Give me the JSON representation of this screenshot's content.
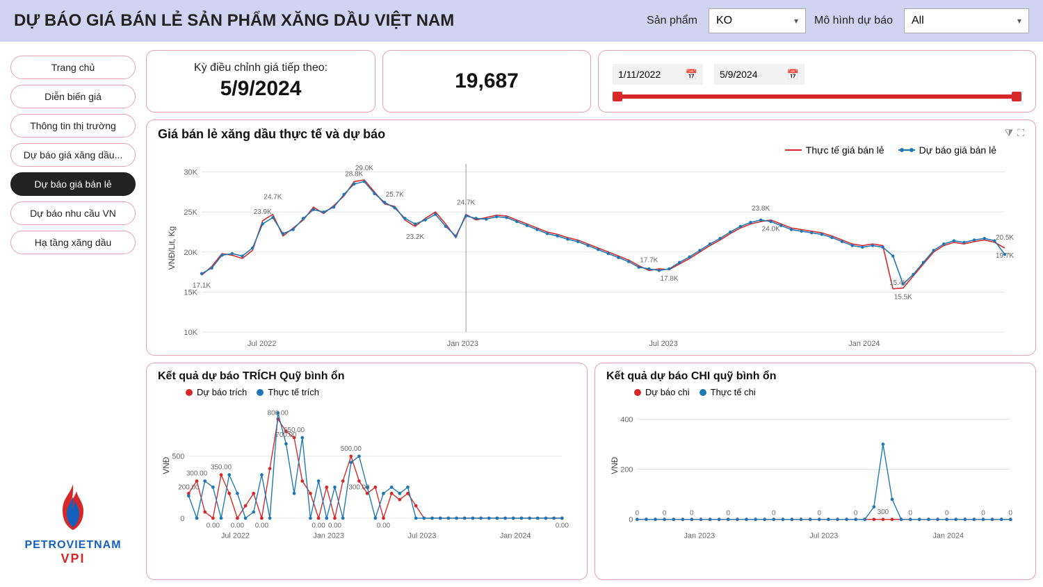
{
  "header": {
    "title": "DỰ BÁO GIÁ BÁN LẺ SẢN PHẨM XĂNG DẦU VIỆT NAM",
    "product_label": "Sản phẩm",
    "product_value": "KO",
    "model_label": "Mô hình dự báo",
    "model_value": "All"
  },
  "sidebar": {
    "items": [
      {
        "label": "Trang chủ",
        "active": false
      },
      {
        "label": "Diễn biến giá",
        "active": false
      },
      {
        "label": "Thông tin thị trường",
        "active": false
      },
      {
        "label": "Dự báo giá xăng dầu...",
        "active": false
      },
      {
        "label": "Dự báo giá bán lẻ",
        "active": true
      },
      {
        "label": "Dự báo nhu cầu VN",
        "active": false
      },
      {
        "label": "Hạ tầng xăng dầu",
        "active": false
      }
    ],
    "logo": {
      "line1": "PETROVIETNAM",
      "line2": "VPI"
    }
  },
  "cards": {
    "next_adjustment_label": "Kỳ điều chỉnh giá tiếp theo:",
    "next_adjustment_value": "5/9/2024",
    "metric_value": "19,687",
    "date_from": "1/11/2022",
    "date_to": "5/9/2024"
  },
  "main_chart": {
    "title": "Giá bán lẻ xăng dầu thực tế và dự báo",
    "y_axis_label": "VNĐ/Lit, Kg",
    "legend": [
      {
        "label": "Thực tế giá bán lẻ",
        "color": "#d62828",
        "style": "line"
      },
      {
        "label": "Dự báo giá bán lẻ",
        "color": "#1f77b4",
        "style": "dots"
      }
    ],
    "y_ticks": [
      10,
      15,
      20,
      25,
      30
    ],
    "y_tick_suffix": "K",
    "x_ticks": [
      "Jul 2022",
      "Jan 2023",
      "Jul 2023",
      "Jan 2024"
    ],
    "ylim": [
      10,
      31
    ],
    "grid_color": "#e5e5e5",
    "background_color": "#ffffff",
    "vline_at_index": 26,
    "annotations": [
      {
        "i": 0,
        "text": "17.1K",
        "dy": 18
      },
      {
        "i": 6,
        "text": "23.9K",
        "dy": -10
      },
      {
        "i": 7,
        "text": "24.7K",
        "dy": -22
      },
      {
        "i": 15,
        "text": "28.8K",
        "dy": -8
      },
      {
        "i": 16,
        "text": "29.0K",
        "dy": -14
      },
      {
        "i": 19,
        "text": "25.7K",
        "dy": -14
      },
      {
        "i": 21,
        "text": "23.2K",
        "dy": 18
      },
      {
        "i": 26,
        "text": "24.7K",
        "dy": -14
      },
      {
        "i": 44,
        "text": "17.7K",
        "dy": -12
      },
      {
        "i": 46,
        "text": "17.8K",
        "dy": 16
      },
      {
        "i": 55,
        "text": "23.8K",
        "dy": -16
      },
      {
        "i": 56,
        "text": "24.0K",
        "dy": 16
      },
      {
        "i": 68,
        "text": "15.4K",
        "dy": -6,
        "dx": 8
      },
      {
        "i": 69,
        "text": "15.5K",
        "dy": 16
      },
      {
        "i": 79,
        "text": "20.5K",
        "dy": -12
      },
      {
        "i": 79,
        "text": "19.7K",
        "dy": 14
      }
    ],
    "series_actual_color": "#d62828",
    "series_forecast_color": "#1f77b4",
    "series_actual": [
      17.1,
      18.2,
      19.8,
      19.6,
      19.2,
      20.2,
      23.9,
      24.7,
      22.0,
      23.0,
      24.0,
      25.6,
      24.8,
      25.8,
      27.0,
      28.8,
      29.0,
      27.5,
      26.0,
      25.7,
      24.0,
      23.2,
      24.2,
      25.0,
      23.5,
      21.8,
      24.7,
      24.0,
      24.3,
      24.6,
      24.5,
      24.0,
      23.5,
      23.0,
      22.5,
      22.2,
      21.8,
      21.5,
      21.0,
      20.5,
      20.0,
      19.5,
      19.0,
      18.3,
      17.7,
      17.9,
      17.8,
      18.5,
      19.2,
      20.0,
      20.8,
      21.5,
      22.3,
      23.0,
      23.5,
      23.8,
      24.0,
      23.5,
      23.0,
      22.8,
      22.6,
      22.4,
      22.0,
      21.5,
      21.0,
      20.8,
      21.0,
      20.8,
      15.4,
      15.5,
      17.0,
      18.5,
      20.0,
      20.8,
      21.2,
      21.0,
      21.3,
      21.5,
      21.2,
      20.5
    ],
    "series_forecast": [
      17.3,
      18.0,
      19.6,
      19.8,
      19.5,
      20.5,
      23.5,
      24.3,
      22.3,
      22.8,
      24.2,
      25.3,
      25.0,
      25.6,
      27.2,
      28.5,
      28.8,
      27.3,
      26.2,
      25.5,
      24.2,
      23.5,
      24.0,
      24.7,
      23.2,
      22.0,
      24.5,
      24.2,
      24.1,
      24.4,
      24.3,
      23.8,
      23.3,
      22.8,
      22.3,
      22.0,
      21.6,
      21.3,
      20.8,
      20.3,
      19.8,
      19.3,
      18.8,
      18.1,
      17.9,
      17.7,
      17.9,
      18.7,
      19.4,
      20.2,
      21.0,
      21.7,
      22.5,
      23.2,
      23.7,
      24.0,
      23.8,
      23.3,
      22.8,
      22.6,
      22.4,
      22.2,
      21.8,
      21.3,
      20.8,
      20.6,
      20.8,
      20.6,
      19.5,
      16.0,
      17.2,
      18.7,
      20.2,
      21.0,
      21.4,
      21.2,
      21.5,
      21.7,
      21.4,
      19.7
    ]
  },
  "trich_chart": {
    "title": "Kết quả dự báo TRÍCH Quỹ bình ổn",
    "y_axis_label": "VNĐ",
    "legend": [
      {
        "label": "Dự báo trích",
        "color": "#d62828"
      },
      {
        "label": "Thực tế trích",
        "color": "#1f77b4"
      }
    ],
    "y_ticks": [
      0,
      500
    ],
    "ylim": [
      -50,
      900
    ],
    "x_ticks": [
      "Jul 2022",
      "Jan 2023",
      "Jul 2023",
      "Jan 2024"
    ],
    "annotations": [
      {
        "i": 0,
        "text": "200.00",
        "dy": -6
      },
      {
        "i": 1,
        "text": "300.00",
        "dy": -8
      },
      {
        "i": 3,
        "text": "0.00",
        "dy": 14
      },
      {
        "i": 4,
        "text": "350.00",
        "dy": -8
      },
      {
        "i": 6,
        "text": "0.00",
        "dy": 14
      },
      {
        "i": 9,
        "text": "0.00",
        "dy": 14
      },
      {
        "i": 11,
        "text": "800.00",
        "dy": -6
      },
      {
        "i": 12,
        "text": "700.00",
        "dy": 8
      },
      {
        "i": 13,
        "text": "650.00",
        "dy": -8
      },
      {
        "i": 16,
        "text": "0.00",
        "dy": 14
      },
      {
        "i": 18,
        "text": "0.00",
        "dy": 14
      },
      {
        "i": 20,
        "text": "500.00",
        "dy": -8
      },
      {
        "i": 21,
        "text": "300.00",
        "dy": 12
      },
      {
        "i": 24,
        "text": "0.00",
        "dy": 14
      },
      {
        "i": 46,
        "text": "0.00",
        "dy": 14
      }
    ],
    "series_forecast_color": "#d62828",
    "series_actual_color": "#1f77b4",
    "series_forecast": [
      200,
      300,
      50,
      0,
      350,
      200,
      0,
      100,
      200,
      0,
      400,
      800,
      700,
      650,
      300,
      200,
      0,
      250,
      0,
      300,
      500,
      300,
      200,
      250,
      0,
      200,
      150,
      200,
      100,
      0,
      0,
      0,
      0,
      0,
      0,
      0,
      0,
      0,
      0,
      0,
      0,
      0,
      0,
      0,
      0,
      0,
      0
    ],
    "series_actual": [
      180,
      0,
      300,
      250,
      0,
      350,
      200,
      0,
      50,
      350,
      0,
      850,
      600,
      200,
      650,
      0,
      300,
      0,
      250,
      0,
      450,
      500,
      250,
      0,
      200,
      250,
      200,
      250,
      0,
      0,
      0,
      0,
      0,
      0,
      0,
      0,
      0,
      0,
      0,
      0,
      0,
      0,
      0,
      0,
      0,
      0,
      0
    ]
  },
  "chi_chart": {
    "title": "Kết quả dự báo CHI quỹ bình ổn",
    "y_axis_label": "VNĐ",
    "legend": [
      {
        "label": "Dự báo chi",
        "color": "#d62828"
      },
      {
        "label": "Thực tế chi",
        "color": "#1f77b4"
      }
    ],
    "y_ticks": [
      0,
      200,
      400
    ],
    "ylim": [
      -20,
      450
    ],
    "x_ticks": [
      "Jan 2023",
      "Jul 2023",
      "Jan 2024"
    ],
    "annotations": [
      {
        "i": 0,
        "text": "0",
        "dy": -6
      },
      {
        "i": 3,
        "text": "0",
        "dy": -6
      },
      {
        "i": 6,
        "text": "0",
        "dy": -6
      },
      {
        "i": 10,
        "text": "0",
        "dy": -6
      },
      {
        "i": 15,
        "text": "0",
        "dy": -6
      },
      {
        "i": 20,
        "text": "0",
        "dy": -6
      },
      {
        "i": 24,
        "text": "0",
        "dy": -6
      },
      {
        "i": 27,
        "text": "300",
        "dy": -8
      },
      {
        "i": 30,
        "text": "0",
        "dy": -6
      },
      {
        "i": 34,
        "text": "0",
        "dy": -6
      },
      {
        "i": 38,
        "text": "0",
        "dy": -6
      },
      {
        "i": 41,
        "text": "0",
        "dy": -6
      }
    ],
    "series_forecast_color": "#d62828",
    "series_actual_color": "#1f77b4",
    "series_forecast": [
      0,
      0,
      0,
      0,
      0,
      0,
      0,
      0,
      0,
      0,
      0,
      0,
      0,
      0,
      0,
      0,
      0,
      0,
      0,
      0,
      0,
      0,
      0,
      0,
      0,
      0,
      0,
      0,
      0,
      0,
      0,
      0,
      0,
      0,
      0,
      0,
      0,
      0,
      0,
      0,
      0,
      0
    ],
    "series_actual": [
      0,
      0,
      0,
      0,
      0,
      0,
      0,
      0,
      0,
      0,
      0,
      0,
      0,
      0,
      0,
      0,
      0,
      0,
      0,
      0,
      0,
      0,
      0,
      0,
      0,
      0,
      50,
      300,
      80,
      0,
      0,
      0,
      0,
      0,
      0,
      0,
      0,
      0,
      0,
      0,
      0,
      0
    ]
  }
}
